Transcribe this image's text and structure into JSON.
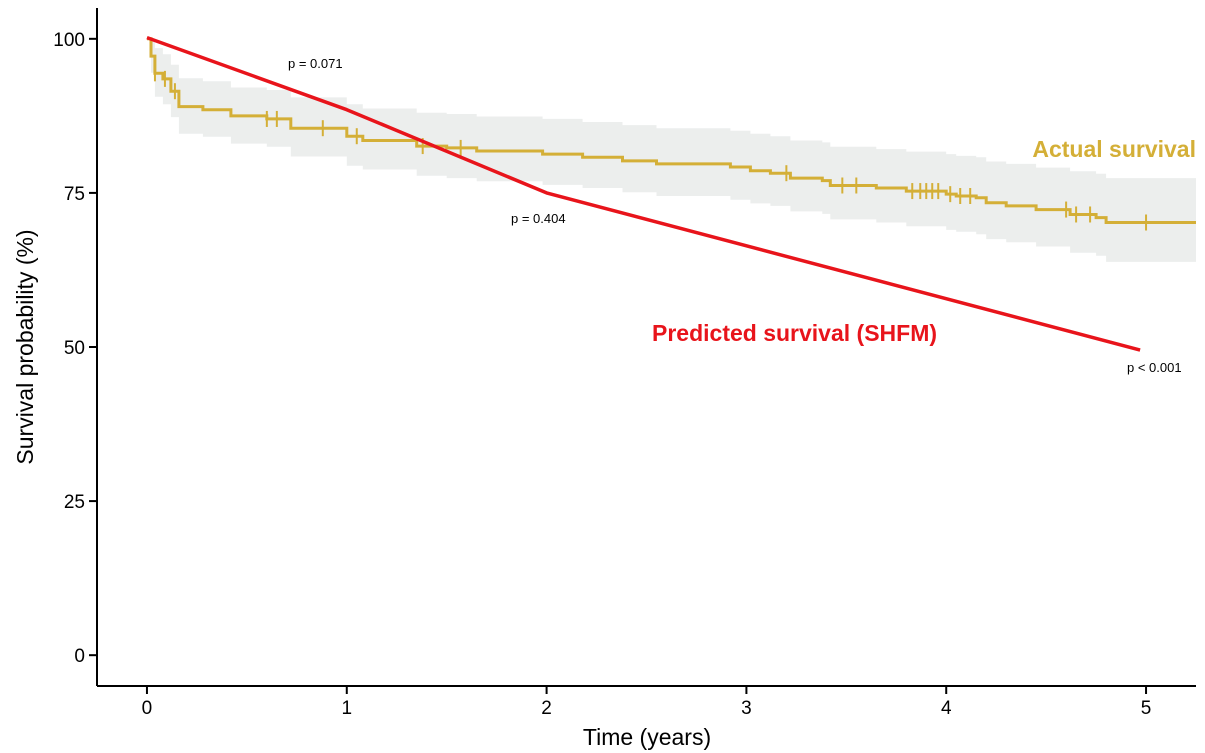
{
  "chart_data": {
    "type": "line",
    "xlabel": "Time (years)",
    "ylabel": "Survival probability (%)",
    "xlim": [
      -0.25,
      5.25
    ],
    "ylim": [
      -5,
      105
    ],
    "x_ticks": [
      0,
      1,
      2,
      3,
      4,
      5
    ],
    "y_ticks": [
      0,
      25,
      50,
      75,
      100
    ],
    "grid": false,
    "colors": {
      "actual": "#d4af37",
      "predicted": "#e8141b",
      "ci_band": "#eceeed"
    },
    "series": [
      {
        "name": "Actual survival",
        "style": "step",
        "x": [
          0,
          0.02,
          0.04,
          0.08,
          0.12,
          0.16,
          0.28,
          0.42,
          0.6,
          0.72,
          1.0,
          1.08,
          1.35,
          1.5,
          1.65,
          1.98,
          2.18,
          2.38,
          2.55,
          2.92,
          3.02,
          3.12,
          3.22,
          3.38,
          3.42,
          3.65,
          3.8,
          4.0,
          4.05,
          4.15,
          4.2,
          4.3,
          4.45,
          4.62,
          4.75,
          4.8,
          5.25
        ],
        "values": [
          100,
          97.2,
          94.4,
          93.5,
          91.5,
          89,
          88.5,
          87.5,
          87,
          85.5,
          84.2,
          83.5,
          82.6,
          82.3,
          81.8,
          81.3,
          80.8,
          80.2,
          79.7,
          79.2,
          78.6,
          78.2,
          77.4,
          77,
          76.2,
          75.8,
          75.3,
          74.8,
          74.5,
          74.2,
          73.4,
          72.9,
          72.3,
          71.5,
          71,
          70.2,
          70.2
        ],
        "ci_upper": [
          100,
          99.6,
          98.5,
          97.5,
          95.8,
          93.6,
          93.1,
          92.1,
          91.7,
          90.5,
          89.4,
          88.7,
          88,
          87.8,
          87.4,
          87,
          86.5,
          86,
          85.5,
          85.1,
          84.6,
          84.2,
          83.5,
          83.2,
          82.5,
          82.1,
          81.7,
          81.3,
          81,
          80.8,
          80.1,
          79.7,
          79.1,
          78.5,
          78.1,
          77.4,
          77.4
        ],
        "ci_lower": [
          100,
          94.5,
          90.6,
          89.4,
          87.3,
          84.6,
          84.1,
          83,
          82.5,
          80.9,
          79.4,
          78.8,
          77.8,
          77.4,
          76.9,
          76.3,
          75.8,
          75.1,
          74.5,
          73.9,
          73.3,
          72.9,
          72,
          71.6,
          70.7,
          70.2,
          69.6,
          69,
          68.7,
          68.3,
          67.5,
          67,
          66.3,
          65.3,
          64.8,
          63.8,
          63.8
        ],
        "censor_x": [
          0.04,
          0.09,
          0.14,
          0.6,
          0.65,
          0.88,
          1.05,
          1.38,
          1.57,
          3.2,
          3.48,
          3.55,
          3.83,
          3.87,
          3.9,
          3.93,
          3.96,
          4.02,
          4.07,
          4.12,
          4.6,
          4.65,
          4.72,
          5.0
        ]
      },
      {
        "name": "Predicted survival (SHFM)",
        "style": "line",
        "x": [
          0,
          1,
          2,
          4.97
        ],
        "values": [
          100.2,
          88.5,
          75,
          49.5
        ]
      }
    ],
    "series_labels": {
      "actual": "Actual survival",
      "predicted": "Predicted survival (SHFM)"
    },
    "annotations": [
      {
        "text": "p = 0.071"
      },
      {
        "text": "p = 0.404"
      },
      {
        "text": "p < 0.001"
      }
    ]
  }
}
